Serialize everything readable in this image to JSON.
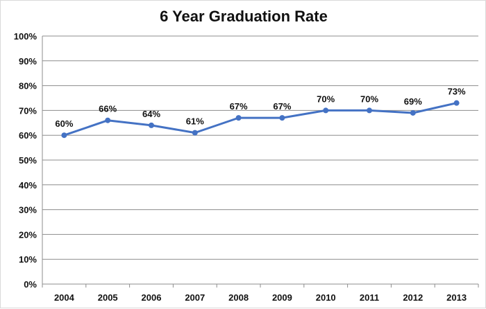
{
  "chart_data": {
    "type": "line",
    "title": "6 Year Graduation Rate",
    "xlabel": "",
    "ylabel": "",
    "categories": [
      "2004",
      "2005",
      "2006",
      "2007",
      "2008",
      "2009",
      "2010",
      "2011",
      "2012",
      "2013"
    ],
    "series": [
      {
        "values": [
          60,
          66,
          64,
          61,
          67,
          67,
          70,
          70,
          69,
          73
        ],
        "labels": [
          "60%",
          "66%",
          "64%",
          "61%",
          "67%",
          "67%",
          "70%",
          "70%",
          "69%",
          "73%"
        ]
      }
    ],
    "ylim": [
      0,
      100
    ],
    "yticks": [
      "0%",
      "10%",
      "20%",
      "30%",
      "40%",
      "50%",
      "60%",
      "70%",
      "80%",
      "90%",
      "100%"
    ],
    "grid": true,
    "legend": "none",
    "colors": {
      "line": "#4472c4",
      "grid": "#8c8c8c",
      "axis": "#8c8c8c"
    }
  }
}
